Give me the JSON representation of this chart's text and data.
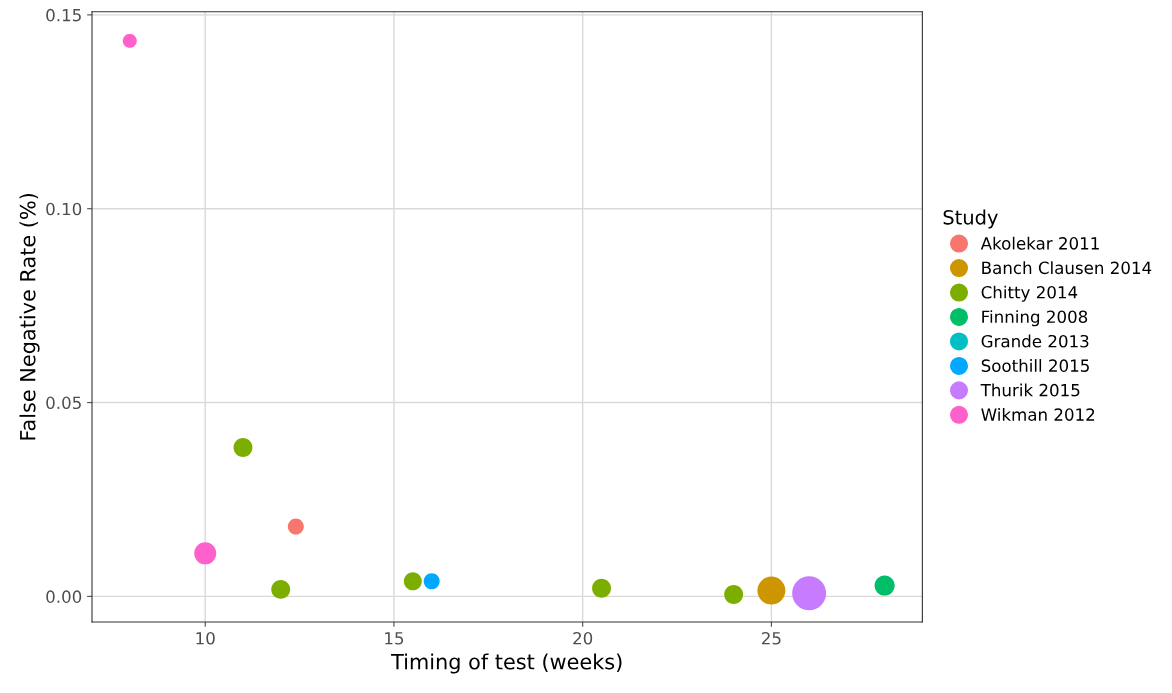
{
  "chart_data": {
    "type": "bubble",
    "xlabel": "Timing of test (weeks)",
    "ylabel": "False Negative Rate (%)",
    "legend_title": "Study",
    "xlim": [
      7.0,
      29.0
    ],
    "ylim": [
      -0.0066,
      0.1508
    ],
    "xticks": [
      10,
      15,
      20,
      25
    ],
    "yticks": [
      {
        "value": 0,
        "label": "0.00"
      },
      {
        "value": 0.05,
        "label": "0.05"
      },
      {
        "value": 0.1,
        "label": "0.10"
      },
      {
        "value": 0.15,
        "label": "0.15"
      }
    ],
    "grid": true,
    "legend": "right",
    "marker": "circle",
    "series": [
      {
        "name": "Akolekar 2011",
        "color": "#f8766d",
        "x": [
          12.4
        ],
        "values": [
          0.018
        ],
        "sizes": [
          0.22
        ]
      },
      {
        "name": "Banch Clausen 2014",
        "color": "#cd9600",
        "x": [
          25
        ],
        "values": [
          0.0015
        ],
        "sizes": [
          0.68
        ]
      },
      {
        "name": "Chitty 2014",
        "color": "#7cae00",
        "x": [
          11,
          12,
          15.5,
          20.5,
          24
        ],
        "values": [
          0.0384,
          0.0018,
          0.0039,
          0.0021,
          0.0005
        ],
        "sizes": [
          0.31,
          0.31,
          0.28,
          0.31,
          0.31
        ]
      },
      {
        "name": "Finning 2008",
        "color": "#00be67",
        "x": [
          28
        ],
        "values": [
          0.0028
        ],
        "sizes": [
          0.35
        ]
      },
      {
        "name": "Grande 2013",
        "color": "#00bfc4",
        "x": [
          null
        ],
        "values": [
          null
        ],
        "sizes": [
          null
        ]
      },
      {
        "name": "Soothill 2015",
        "color": "#00a9ff",
        "x": [
          16
        ],
        "values": [
          0.0039
        ],
        "sizes": [
          0.22
        ]
      },
      {
        "name": "Thurik 2015",
        "color": "#c77cff",
        "x": [
          26
        ],
        "values": [
          0.0008
        ],
        "sizes": [
          1
        ]
      },
      {
        "name": "Wikman 2012",
        "color": "#ff61cc",
        "x": [
          8,
          10
        ],
        "values": [
          0.1433,
          0.0111
        ],
        "sizes": [
          0.17,
          0.42
        ]
      }
    ]
  }
}
